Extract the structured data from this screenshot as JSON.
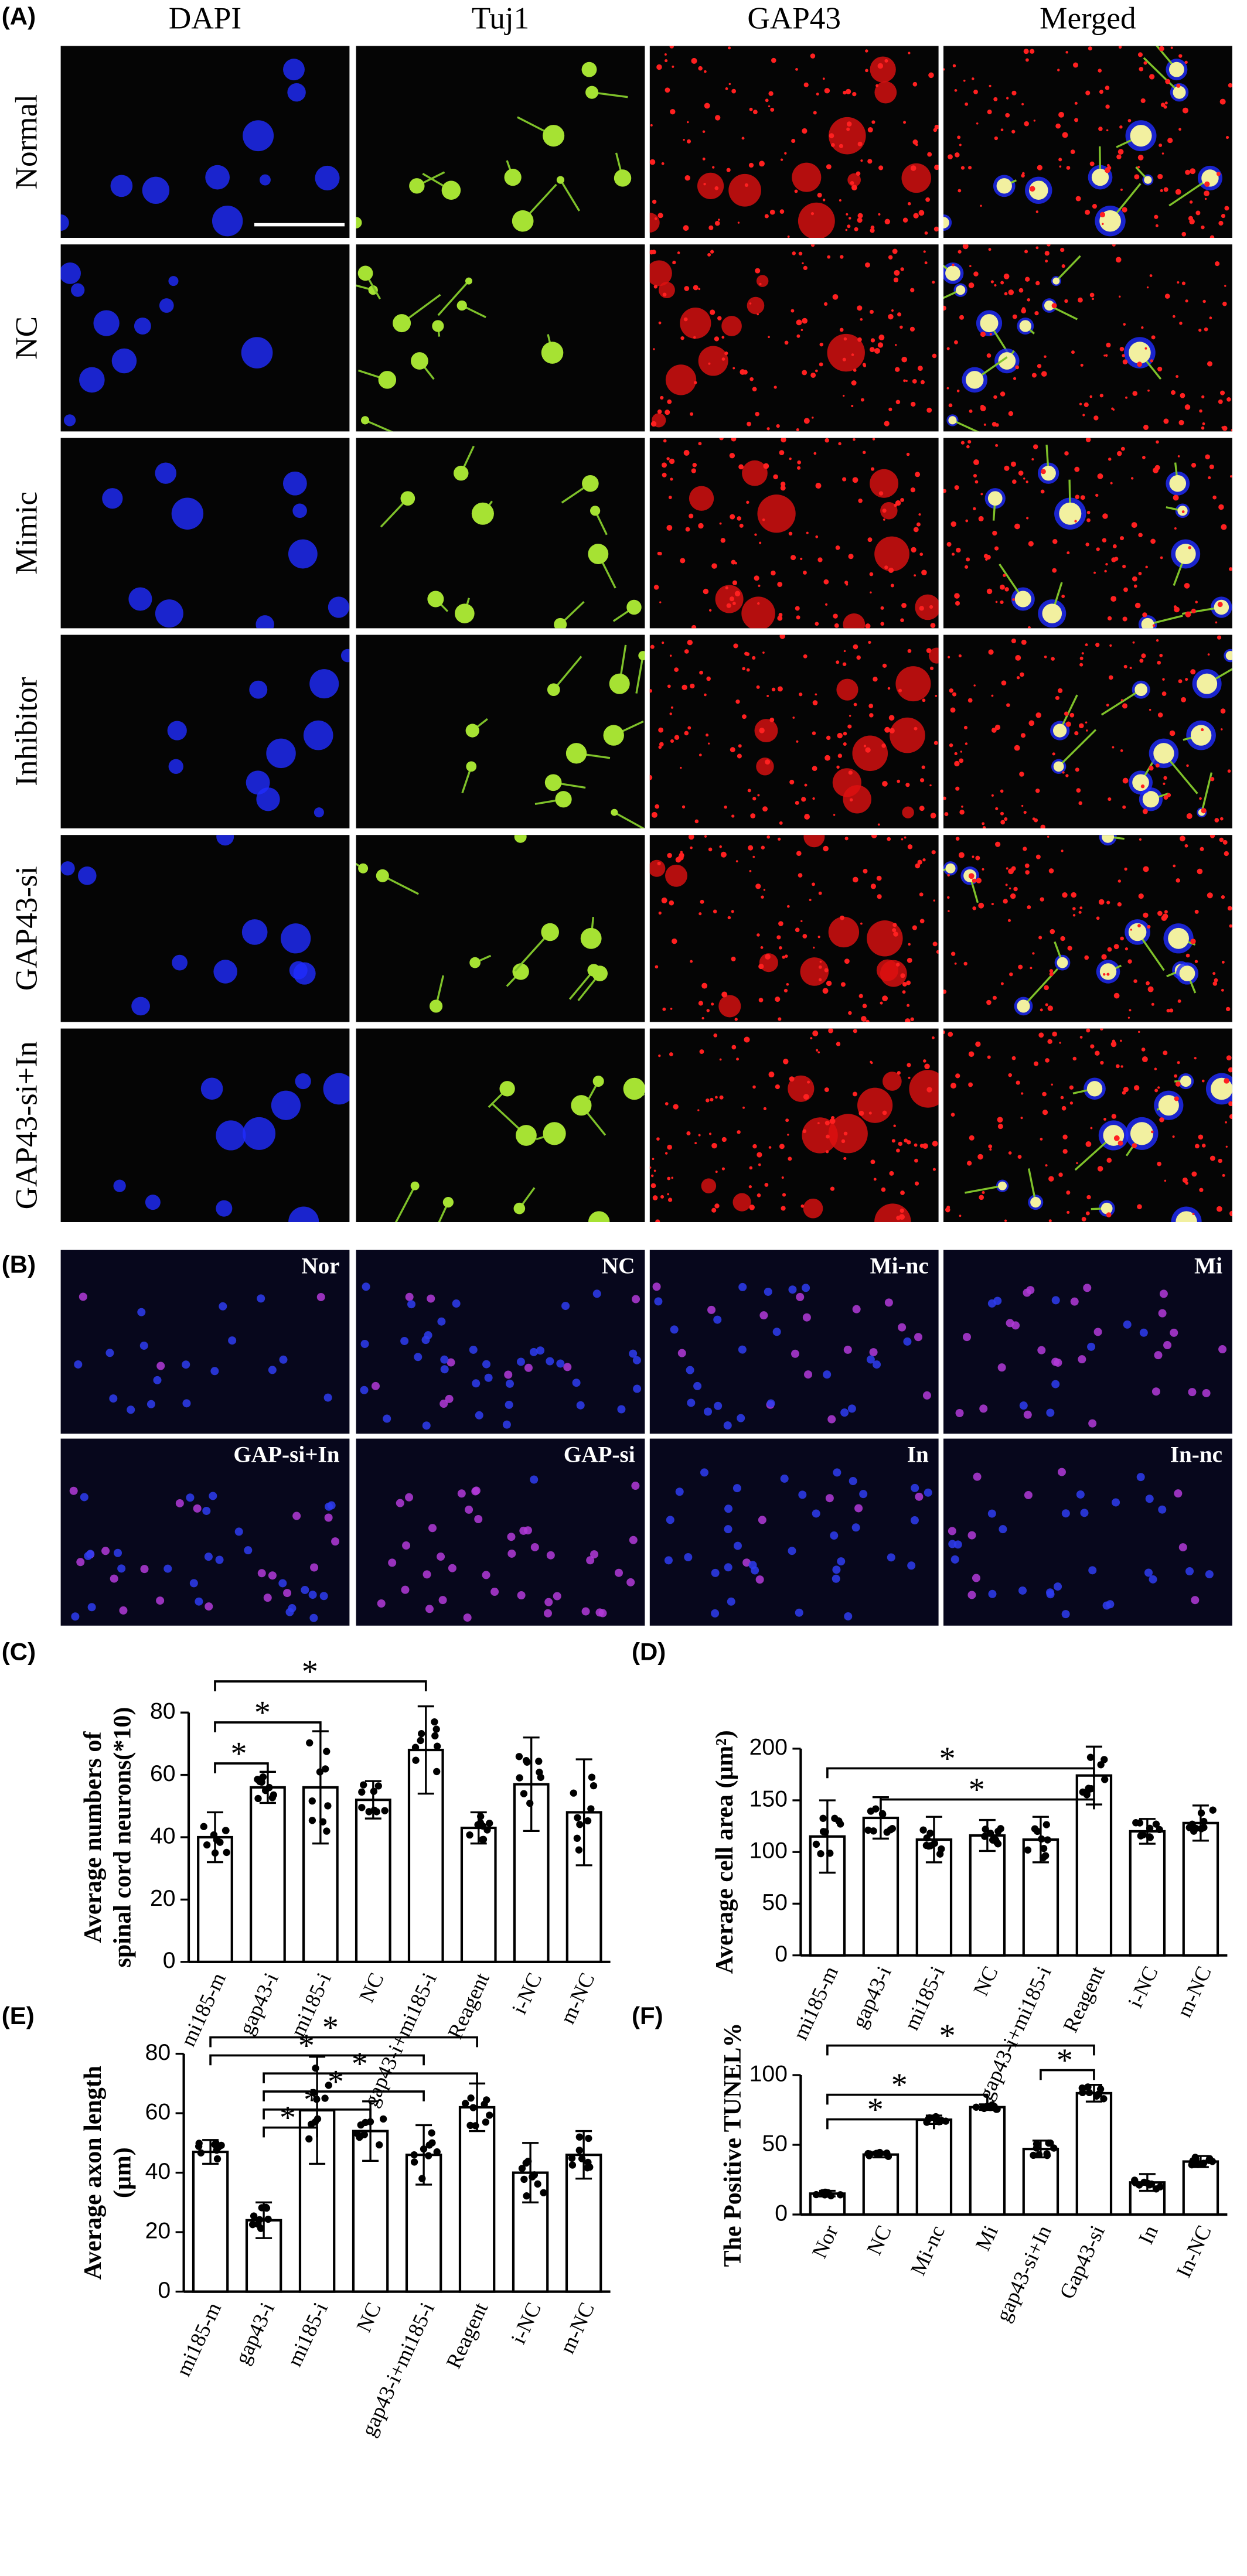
{
  "panel_a": {
    "label": "(A)",
    "columns": [
      "DAPI",
      "Tuj1",
      "GAP43",
      "Merged"
    ],
    "rows": [
      "Normal",
      "NC",
      "Mimic",
      "Inhibitor",
      "GAP43-si",
      "GAP43-si+In"
    ]
  },
  "panel_b": {
    "label": "(B)",
    "images": [
      "Nor",
      "NC",
      "Mi-nc",
      "Mi",
      "GAP-si+In",
      "GAP-si",
      "In",
      "In-nc"
    ]
  },
  "chart_data": [
    {
      "type": "bar",
      "panel": "(C)",
      "ylabel": [
        "Average numbers of",
        "spinal cord neurons(*10)"
      ],
      "categories": [
        "mi185-m",
        "gap43-i",
        "mi185-i",
        "NC",
        "gap43-i+mi185-i",
        "Reagent",
        "i-NC",
        "m-NC"
      ],
      "values": [
        40,
        56,
        56,
        52,
        68,
        43,
        57,
        48
      ],
      "errors": [
        8,
        5,
        18,
        6,
        14,
        5,
        15,
        17
      ],
      "color": "#ffffff",
      "ylim": [
        0,
        80
      ],
      "yticks": [
        0,
        20,
        40,
        60,
        80
      ],
      "comparisons": [
        {
          "between": [
            0,
            1
          ],
          "label": "*"
        },
        {
          "between": [
            0,
            2
          ],
          "label": "*"
        },
        {
          "between": [
            0,
            4
          ],
          "label": "*"
        }
      ]
    },
    {
      "type": "bar",
      "panel": "(D)",
      "ylabel": [
        "Average cell area (μm²)"
      ],
      "categories": [
        "mi185-m",
        "gap43-i",
        "mi185-i",
        "NC",
        "gap43-i+mi185-i",
        "Reagent",
        "i-NC",
        "m-NC"
      ],
      "values": [
        115,
        133,
        112,
        116,
        112,
        174,
        120,
        128
      ],
      "errors": [
        35,
        20,
        22,
        15,
        22,
        28,
        12,
        17
      ],
      "color": "#ffffff",
      "ylim": [
        0,
        200
      ],
      "yticks": [
        0,
        50,
        100,
        150,
        200
      ],
      "comparisons": [
        {
          "between": [
            1,
            5
          ],
          "label": "*"
        },
        {
          "between": [
            0,
            5
          ],
          "label": "*"
        }
      ]
    },
    {
      "type": "bar",
      "panel": "(E)",
      "ylabel": [
        "Average axon length",
        "(μm)"
      ],
      "categories": [
        "mi185-m",
        "gap43-i",
        "mi185-i",
        "NC",
        "gap43-i+mi185-i",
        "Reagent",
        "i-NC",
        "m-NC"
      ],
      "values": [
        47,
        24,
        61,
        54,
        46,
        62,
        40,
        46
      ],
      "errors": [
        4,
        6,
        18,
        10,
        10,
        8,
        10,
        8
      ],
      "color": "#ffffff",
      "ylim": [
        0,
        80
      ],
      "yticks": [
        0,
        20,
        40,
        60,
        80
      ],
      "comparisons": [
        {
          "between": [
            1,
            2
          ],
          "label": "*"
        },
        {
          "between": [
            1,
            3
          ],
          "label": "*"
        },
        {
          "between": [
            1,
            4
          ],
          "label": "*"
        },
        {
          "between": [
            1,
            5
          ],
          "label": "*"
        },
        {
          "between": [
            0,
            4
          ],
          "label": "*"
        },
        {
          "between": [
            0,
            5
          ],
          "label": "*"
        }
      ]
    },
    {
      "type": "bar",
      "panel": "(F)",
      "ylabel": [
        "The Positive TUNEL%"
      ],
      "categories": [
        "Nor",
        "NC",
        "Mi-nc",
        "Mi",
        "gap43-si+In",
        "Gap43-si",
        "In",
        "In-NC"
      ],
      "values": [
        15,
        43,
        68,
        77,
        47,
        87,
        23,
        38
      ],
      "errors": [
        2,
        2,
        3,
        2,
        6,
        6,
        6,
        4
      ],
      "color": "#ffffff",
      "ylim": [
        0,
        100
      ],
      "yticks": [
        0,
        50,
        100
      ],
      "comparisons": [
        {
          "between": [
            0,
            2
          ],
          "label": "*"
        },
        {
          "between": [
            0,
            3
          ],
          "label": "*"
        },
        {
          "between": [
            4,
            5
          ],
          "label": "*"
        },
        {
          "between": [
            0,
            5
          ],
          "label": "*"
        }
      ]
    }
  ]
}
